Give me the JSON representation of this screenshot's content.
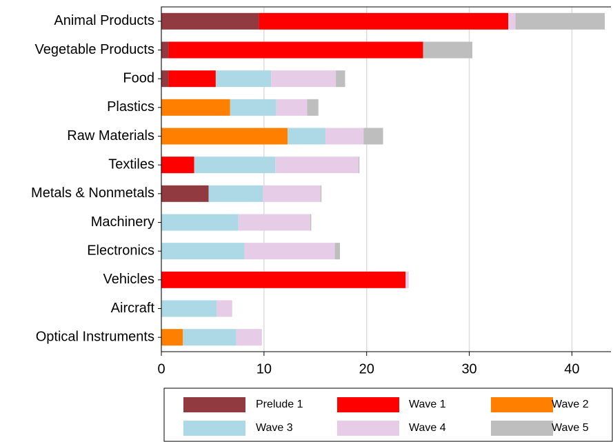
{
  "chart_data": {
    "type": "stacked-barh",
    "categories": [
      "Animal Products",
      "Vegetable Products",
      "Food",
      "Plastics",
      "Raw Materials",
      "Textiles",
      "Metals & Nonmetals",
      "Machinery",
      "Electronics",
      "Vehicles",
      "Aircraft",
      "Optical Instruments"
    ],
    "series": [
      {
        "name": "Prelude 1",
        "color": "#913a40",
        "values": [
          9.5,
          0.7,
          0.7,
          0,
          0,
          0,
          4.6,
          0,
          0,
          0,
          0,
          0
        ]
      },
      {
        "name": "Wave 1",
        "color": "#ff0000",
        "values": [
          24.3,
          24.8,
          4.6,
          0,
          0,
          3.2,
          0,
          0,
          0,
          23.8,
          0,
          0
        ]
      },
      {
        "name": "Wave 2",
        "color": "#ff8000",
        "values": [
          0,
          0,
          0,
          6.7,
          12.3,
          0,
          0,
          0,
          0,
          0,
          0,
          2.1
        ]
      },
      {
        "name": "Wave 3",
        "color": "#add8e6",
        "values": [
          0,
          0,
          5.4,
          4.5,
          3.7,
          7.9,
          5.3,
          7.5,
          8.1,
          0,
          5.4,
          5.2
        ]
      },
      {
        "name": "Wave 4",
        "color": "#e6cce6",
        "values": [
          0.7,
          0,
          6.3,
          3.0,
          3.7,
          8.1,
          5.6,
          7.0,
          8.8,
          0.3,
          1.5,
          2.5
        ]
      },
      {
        "name": "Wave 5",
        "color": "#bebebe",
        "values": [
          8.7,
          4.8,
          0.9,
          1.1,
          1.9,
          0.1,
          0.1,
          0.1,
          0.5,
          0,
          0,
          0
        ]
      }
    ],
    "xlim": [
      0,
      43.8
    ],
    "xticks": [
      0,
      10,
      20,
      30,
      40
    ],
    "grid": true,
    "legend": "bottom"
  }
}
